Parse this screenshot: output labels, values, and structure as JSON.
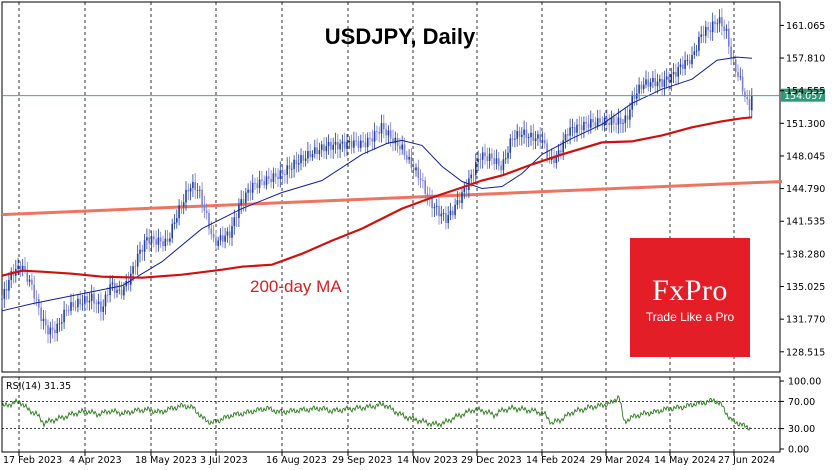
{
  "chart_data": [
    {
      "type": "candlestick",
      "title": "USDJPY, Daily",
      "annotation": "200-day MA",
      "current_price_label": "154.057",
      "current_price": 154.057,
      "ylim": [
        126.5,
        163.4
      ],
      "y_ticks": [
        "161.065",
        "157.810",
        "154.555",
        "151.300",
        "148.045",
        "144.790",
        "141.535",
        "138.280",
        "135.025",
        "131.770",
        "128.515"
      ],
      "x_ticks": [
        "17 Feb 2023",
        "4 Apr 2023",
        "18 May 2023",
        "3 Jul 2023",
        "16 Aug 2023",
        "29 Sep 2023",
        "14 Nov 2023",
        "29 Dec 2023",
        "14 Feb 2024",
        "29 Mar 2024",
        "14 May 2024",
        "27 Jun 2024"
      ],
      "grid": true,
      "price_path": [
        [
          0,
          133.8
        ],
        [
          10,
          136.5
        ],
        [
          20,
          137.2
        ],
        [
          30,
          135.2
        ],
        [
          40,
          132.0
        ],
        [
          47,
          130.8
        ],
        [
          55,
          131.2
        ],
        [
          65,
          133.2
        ],
        [
          78,
          133.8
        ],
        [
          90,
          134.2
        ],
        [
          100,
          133.0
        ],
        [
          108,
          135.5
        ],
        [
          118,
          134.5
        ],
        [
          128,
          136.0
        ],
        [
          135,
          138.0
        ],
        [
          145,
          139.8
        ],
        [
          155,
          139.5
        ],
        [
          165,
          139.2
        ],
        [
          175,
          142.0
        ],
        [
          188,
          144.8
        ],
        [
          196,
          144.5
        ],
        [
          205,
          141.5
        ],
        [
          212,
          139.0
        ],
        [
          220,
          139.5
        ],
        [
          228,
          140.0
        ],
        [
          238,
          143.0
        ],
        [
          250,
          144.8
        ],
        [
          265,
          145.5
        ],
        [
          280,
          146.2
        ],
        [
          295,
          147.5
        ],
        [
          310,
          148.5
        ],
        [
          325,
          149.3
        ],
        [
          340,
          149.5
        ],
        [
          352,
          149.7
        ],
        [
          362,
          149.6
        ],
        [
          370,
          150.2
        ],
        [
          380,
          151.3
        ],
        [
          390,
          150.0
        ],
        [
          400,
          149.0
        ],
        [
          408,
          147.5
        ],
        [
          418,
          146.0
        ],
        [
          428,
          143.5
        ],
        [
          436,
          142.5
        ],
        [
          444,
          141.7
        ],
        [
          450,
          142.3
        ],
        [
          460,
          144.0
        ],
        [
          468,
          145.5
        ],
        [
          478,
          147.8
        ],
        [
          490,
          147.5
        ],
        [
          500,
          146.5
        ],
        [
          510,
          149.5
        ],
        [
          520,
          150.0
        ],
        [
          530,
          149.6
        ],
        [
          540,
          149.5
        ],
        [
          548,
          147.2
        ],
        [
          556,
          148.0
        ],
        [
          566,
          150.5
        ],
        [
          578,
          151.0
        ],
        [
          590,
          151.5
        ],
        [
          600,
          151.6
        ],
        [
          610,
          151.7
        ],
        [
          618,
          151.7
        ],
        [
          625,
          152.0
        ],
        [
          630,
          154.0
        ],
        [
          640,
          155.5
        ],
        [
          650,
          155.8
        ],
        [
          660,
          155.7
        ],
        [
          672,
          156.5
        ],
        [
          680,
          157.4
        ],
        [
          690,
          158.0
        ],
        [
          700,
          160.5
        ],
        [
          708,
          160.8
        ],
        [
          716,
          161.7
        ],
        [
          724,
          160.5
        ],
        [
          730,
          157.5
        ],
        [
          738,
          155.5
        ],
        [
          744,
          153.5
        ],
        [
          747,
          152.5
        ],
        [
          750,
          154.0
        ]
      ],
      "ma_50_path": [
        [
          0,
          132.6
        ],
        [
          30,
          133.3
        ],
        [
          60,
          133.9
        ],
        [
          90,
          134.5
        ],
        [
          120,
          135.1
        ],
        [
          160,
          137.5
        ],
        [
          200,
          140.8
        ],
        [
          240,
          142.8
        ],
        [
          280,
          144.4
        ],
        [
          320,
          145.6
        ],
        [
          360,
          148.2
        ],
        [
          385,
          149.3
        ],
        [
          400,
          149.6
        ],
        [
          420,
          149.1
        ],
        [
          440,
          147.0
        ],
        [
          460,
          145.5
        ],
        [
          480,
          144.8
        ],
        [
          500,
          145.0
        ],
        [
          520,
          146.3
        ],
        [
          540,
          148.2
        ],
        [
          570,
          149.8
        ],
        [
          600,
          151.2
        ],
        [
          630,
          153.3
        ],
        [
          660,
          154.7
        ],
        [
          690,
          155.7
        ],
        [
          715,
          157.6
        ],
        [
          735,
          157.9
        ],
        [
          750,
          157.8
        ]
      ],
      "ma_200_path": [
        [
          0,
          136.1
        ],
        [
          20,
          136.6
        ],
        [
          40,
          136.5
        ],
        [
          70,
          136.3
        ],
        [
          100,
          136.0
        ],
        [
          140,
          135.9
        ],
        [
          180,
          136.2
        ],
        [
          220,
          136.7
        ],
        [
          240,
          137.0
        ],
        [
          270,
          137.2
        ],
        [
          300,
          138.3
        ],
        [
          330,
          139.6
        ],
        [
          360,
          140.8
        ],
        [
          400,
          142.8
        ],
        [
          430,
          143.9
        ],
        [
          460,
          144.9
        ],
        [
          480,
          145.6
        ],
        [
          500,
          146.1
        ],
        [
          530,
          147.2
        ],
        [
          560,
          148.2
        ],
        [
          600,
          149.4
        ],
        [
          630,
          149.5
        ],
        [
          660,
          150.1
        ],
        [
          690,
          150.9
        ],
        [
          720,
          151.5
        ],
        [
          740,
          151.8
        ],
        [
          750,
          151.9
        ]
      ],
      "trendline": [
        [
          0,
          142.2
        ],
        [
          780,
          145.5
        ]
      ]
    },
    {
      "type": "line",
      "title": "RSI(14) 31.35",
      "ylim": [
        0,
        100
      ],
      "y_ticks": [
        "100.00",
        "70.00",
        "30.00",
        "0.00"
      ],
      "levels": [
        70,
        30
      ],
      "current_value": 31.35,
      "rsi_path": [
        [
          0,
          62
        ],
        [
          8,
          66
        ],
        [
          18,
          70
        ],
        [
          26,
          58
        ],
        [
          34,
          52
        ],
        [
          42,
          38
        ],
        [
          50,
          42
        ],
        [
          60,
          46
        ],
        [
          72,
          52
        ],
        [
          84,
          56
        ],
        [
          96,
          51
        ],
        [
          108,
          56
        ],
        [
          122,
          52
        ],
        [
          132,
          56
        ],
        [
          144,
          58
        ],
        [
          158,
          54
        ],
        [
          170,
          60
        ],
        [
          182,
          64
        ],
        [
          192,
          60
        ],
        [
          200,
          46
        ],
        [
          210,
          38
        ],
        [
          220,
          44
        ],
        [
          230,
          50
        ],
        [
          240,
          52
        ],
        [
          252,
          56
        ],
        [
          265,
          60
        ],
        [
          278,
          54
        ],
        [
          290,
          56
        ],
        [
          305,
          58
        ],
        [
          318,
          60
        ],
        [
          330,
          56
        ],
        [
          342,
          58
        ],
        [
          355,
          60
        ],
        [
          368,
          62
        ],
        [
          382,
          66
        ],
        [
          392,
          56
        ],
        [
          402,
          48
        ],
        [
          412,
          44
        ],
        [
          422,
          40
        ],
        [
          432,
          36
        ],
        [
          442,
          38
        ],
        [
          452,
          46
        ],
        [
          462,
          52
        ],
        [
          472,
          58
        ],
        [
          482,
          56
        ],
        [
          492,
          50
        ],
        [
          502,
          58
        ],
        [
          512,
          60
        ],
        [
          522,
          58
        ],
        [
          532,
          56
        ],
        [
          542,
          52
        ],
        [
          550,
          38
        ],
        [
          560,
          44
        ],
        [
          570,
          54
        ],
        [
          580,
          58
        ],
        [
          590,
          62
        ],
        [
          600,
          64
        ],
        [
          610,
          68
        ],
        [
          617,
          78
        ],
        [
          622,
          40
        ],
        [
          632,
          48
        ],
        [
          642,
          52
        ],
        [
          652,
          54
        ],
        [
          662,
          58
        ],
        [
          672,
          60
        ],
        [
          682,
          62
        ],
        [
          692,
          66
        ],
        [
          702,
          68
        ],
        [
          712,
          72
        ],
        [
          720,
          64
        ],
        [
          728,
          44
        ],
        [
          736,
          38
        ],
        [
          742,
          34
        ],
        [
          748,
          31
        ]
      ]
    }
  ],
  "logo": {
    "name": "FxPro",
    "tagline": "Trade Like a Pro",
    "color": "#e41e26"
  },
  "colors": {
    "up_candle": "#1f3f99",
    "down_candle": "#7a7fd0",
    "ma_50": "#0f1fa0",
    "ma_200": "#d10f0f",
    "trendline": "#f0735f",
    "price_line": "#2e9a74",
    "rsi": "#2a7a1a",
    "grid": "#000000"
  }
}
